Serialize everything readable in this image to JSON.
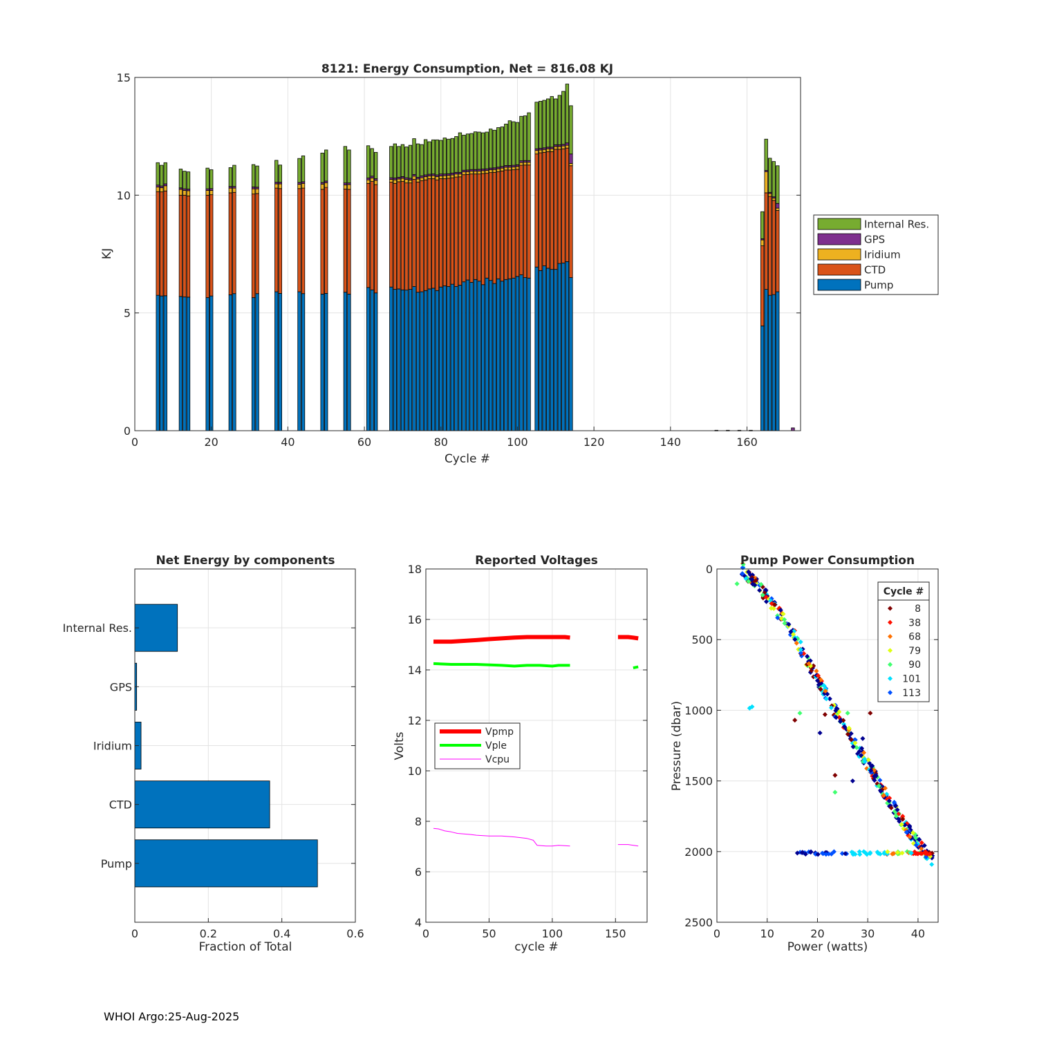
{
  "footer": "WHOI Argo:25-Aug-2025",
  "chart_data": [
    {
      "id": "energy",
      "type": "bar",
      "stacked": true,
      "title": "8121: Energy Consumption,  Net = 816.08 KJ",
      "xlabel": "Cycle #",
      "ylabel": "KJ",
      "xlim": [
        0,
        174
      ],
      "ylim": [
        0,
        15
      ],
      "xticks": [
        0,
        20,
        40,
        60,
        80,
        100,
        120,
        140,
        160
      ],
      "yticks": [
        0,
        5,
        10,
        15
      ],
      "grid": true,
      "legend_position": "outside-right",
      "legend_order": [
        "Internal Res.",
        "GPS",
        "Iridium",
        "CTD",
        "Pump"
      ],
      "colors": {
        "Pump": "#0072BD",
        "CTD": "#D95319",
        "Iridium": "#EDB120",
        "GPS": "#7E2F8E",
        "Internal Res.": "#77AC30"
      },
      "cycles": [
        6,
        7,
        8,
        12,
        13,
        14,
        19,
        20,
        25,
        26,
        31,
        32,
        37,
        38,
        43,
        44,
        49,
        50,
        55,
        56,
        61,
        62,
        63,
        67,
        68,
        69,
        70,
        71,
        72,
        73,
        74,
        75,
        76,
        77,
        78,
        79,
        80,
        81,
        82,
        83,
        84,
        85,
        86,
        87,
        88,
        89,
        90,
        91,
        92,
        93,
        94,
        95,
        96,
        97,
        98,
        99,
        100,
        101,
        102,
        103,
        105,
        106,
        107,
        108,
        109,
        110,
        111,
        112,
        113,
        114,
        164,
        165,
        166,
        167,
        168
      ],
      "series": [
        {
          "name": "Pump",
          "values": [
            5.75,
            5.72,
            5.73,
            5.7,
            5.68,
            5.67,
            5.65,
            5.72,
            5.77,
            5.82,
            5.65,
            5.82,
            5.9,
            5.83,
            5.9,
            5.82,
            5.8,
            5.83,
            5.88,
            5.8,
            6.08,
            5.98,
            5.85,
            6.1,
            6.0,
            6.02,
            5.98,
            5.97,
            6.0,
            6.12,
            5.88,
            5.9,
            5.95,
            6.02,
            6.05,
            5.95,
            6.1,
            6.15,
            6.12,
            6.22,
            6.12,
            6.18,
            6.32,
            6.4,
            6.3,
            6.42,
            6.35,
            6.2,
            6.48,
            6.38,
            6.25,
            6.45,
            6.35,
            6.42,
            6.45,
            6.48,
            6.55,
            6.62,
            6.5,
            6.48,
            6.95,
            6.8,
            7.0,
            6.9,
            6.85,
            6.85,
            7.1,
            7.12,
            7.18,
            6.5,
            4.45,
            6.0,
            5.75,
            5.78,
            5.9
          ]
        },
        {
          "name": "CTD",
          "values": [
            4.4,
            4.42,
            4.45,
            4.3,
            4.32,
            4.3,
            4.35,
            4.3,
            4.33,
            4.3,
            4.4,
            4.25,
            4.4,
            4.45,
            4.38,
            4.48,
            4.45,
            4.5,
            4.38,
            4.45,
            4.42,
            4.6,
            4.6,
            4.45,
            4.5,
            4.55,
            4.6,
            4.55,
            4.52,
            4.55,
            4.68,
            4.72,
            4.7,
            4.68,
            4.65,
            4.7,
            4.6,
            4.55,
            4.6,
            4.52,
            4.65,
            4.6,
            4.55,
            4.48,
            4.6,
            4.48,
            4.55,
            4.72,
            4.45,
            4.58,
            4.72,
            4.55,
            4.68,
            4.65,
            4.62,
            4.6,
            4.55,
            4.65,
            4.78,
            4.8,
            4.8,
            5.0,
            4.82,
            4.95,
            5.0,
            5.1,
            4.85,
            4.85,
            4.82,
            4.75,
            3.4,
            4.1,
            4.2,
            4.0,
            3.45
          ]
        },
        {
          "name": "Iridium",
          "values": [
            0.2,
            0.18,
            0.22,
            0.25,
            0.2,
            0.22,
            0.2,
            0.18,
            0.2,
            0.18,
            0.22,
            0.2,
            0.18,
            0.2,
            0.18,
            0.2,
            0.22,
            0.2,
            0.18,
            0.2,
            0.15,
            0.15,
            0.18,
            0.12,
            0.15,
            0.12,
            0.14,
            0.15,
            0.12,
            0.14,
            0.13,
            0.12,
            0.14,
            0.12,
            0.13,
            0.14,
            0.12,
            0.13,
            0.12,
            0.12,
            0.13,
            0.12,
            0.12,
            0.12,
            0.12,
            0.12,
            0.12,
            0.12,
            0.12,
            0.12,
            0.12,
            0.12,
            0.12,
            0.12,
            0.12,
            0.12,
            0.12,
            0.12,
            0.12,
            0.12,
            0.15,
            0.12,
            0.12,
            0.12,
            0.12,
            0.12,
            0.12,
            0.12,
            0.12,
            0.1,
            0.25,
            0.9,
            0.12,
            0.1,
            0.1
          ]
        },
        {
          "name": "GPS",
          "values": [
            0.08,
            0.07,
            0.08,
            0.06,
            0.07,
            0.07,
            0.07,
            0.08,
            0.07,
            0.07,
            0.08,
            0.07,
            0.07,
            0.07,
            0.08,
            0.07,
            0.07,
            0.07,
            0.08,
            0.07,
            0.08,
            0.08,
            0.07,
            0.07,
            0.08,
            0.07,
            0.07,
            0.07,
            0.08,
            0.07,
            0.07,
            0.08,
            0.07,
            0.07,
            0.07,
            0.07,
            0.08,
            0.07,
            0.07,
            0.08,
            0.07,
            0.07,
            0.07,
            0.07,
            0.07,
            0.07,
            0.08,
            0.07,
            0.07,
            0.07,
            0.07,
            0.07,
            0.07,
            0.07,
            0.07,
            0.07,
            0.07,
            0.07,
            0.07,
            0.07,
            0.07,
            0.07,
            0.07,
            0.07,
            0.07,
            0.07,
            0.07,
            0.07,
            0.1,
            0.4,
            0.05,
            0.05,
            0.05,
            0.05,
            0.2
          ]
        },
        {
          "name": "Internal Res.",
          "values": [
            0.95,
            0.88,
            0.9,
            0.8,
            0.75,
            0.73,
            0.88,
            0.8,
            0.8,
            0.9,
            0.95,
            0.9,
            0.93,
            0.73,
            1.02,
            1.1,
            1.25,
            1.32,
            1.55,
            1.4,
            1.37,
            1.17,
            1.12,
            1.33,
            1.45,
            1.31,
            1.36,
            1.31,
            1.4,
            1.52,
            1.42,
            1.33,
            1.5,
            1.38,
            1.45,
            1.49,
            1.43,
            1.53,
            1.47,
            1.47,
            1.52,
            1.68,
            1.49,
            1.53,
            1.53,
            1.6,
            1.58,
            1.54,
            1.56,
            1.66,
            1.6,
            1.68,
            1.68,
            1.76,
            1.9,
            1.85,
            1.8,
            1.89,
            1.9,
            2.03,
            1.98,
            2.0,
            2.02,
            2.05,
            2.15,
            1.95,
            2.1,
            2.25,
            2.5,
            2.05,
            1.15,
            1.33,
            1.45,
            1.5,
            1.6
          ]
        }
      ],
      "sparse_bars": [
        {
          "cycle": 152,
          "value": 0.02
        },
        {
          "cycle": 155,
          "value": 0.02
        },
        {
          "cycle": 158,
          "value": 0.02
        },
        {
          "cycle": 161,
          "value": 0.02
        },
        {
          "cycle": 172,
          "value": 0.12
        }
      ]
    },
    {
      "id": "components",
      "type": "bar",
      "orientation": "horizontal",
      "title": "Net Energy by components",
      "xlabel": "Fraction of Total",
      "xlim": [
        0,
        0.6
      ],
      "xticks": [
        0,
        0.2,
        0.4,
        0.6
      ],
      "xticklabels": [
        "0",
        "0.2",
        "0.4",
        "0.6"
      ],
      "categories": [
        "Internal Res.",
        "GPS",
        "Iridium",
        "CTD",
        "Pump"
      ],
      "values": [
        0.116,
        0.005,
        0.017,
        0.367,
        0.497
      ],
      "color": "#0072BD"
    },
    {
      "id": "voltages",
      "type": "line",
      "title": "Reported Voltages",
      "xlabel": "cycle #",
      "ylabel": "Volts",
      "xlim": [
        0,
        175
      ],
      "ylim": [
        4,
        18
      ],
      "xticks": [
        0,
        50,
        100,
        150
      ],
      "yticks": [
        4,
        6,
        8,
        10,
        12,
        14,
        16,
        18
      ],
      "legend_position": "middle-left",
      "series": [
        {
          "name": "Vpmp",
          "color": "#FF0000",
          "segments": [
            [
              [
                6,
                15.12
              ],
              [
                20,
                15.12
              ],
              [
                30,
                15.15
              ],
              [
                40,
                15.18
              ],
              [
                50,
                15.22
              ],
              [
                60,
                15.25
              ],
              [
                70,
                15.28
              ],
              [
                80,
                15.3
              ],
              [
                90,
                15.3
              ],
              [
                100,
                15.3
              ],
              [
                110,
                15.3
              ],
              [
                114,
                15.28
              ]
            ],
            [
              [
                152,
                15.3
              ],
              [
                160,
                15.3
              ],
              [
                164,
                15.28
              ],
              [
                168,
                15.25
              ]
            ]
          ]
        },
        {
          "name": "Vple",
          "color": "#00FF00",
          "segments": [
            [
              [
                6,
                14.25
              ],
              [
                20,
                14.22
              ],
              [
                40,
                14.22
              ],
              [
                60,
                14.18
              ],
              [
                70,
                14.15
              ],
              [
                80,
                14.18
              ],
              [
                90,
                14.18
              ],
              [
                100,
                14.15
              ],
              [
                105,
                14.18
              ],
              [
                114,
                14.18
              ]
            ],
            [
              [
                164,
                14.08
              ],
              [
                168,
                14.12
              ]
            ]
          ]
        },
        {
          "name": "Vcpu",
          "color": "#FF00FF",
          "segments": [
            [
              [
                6,
                7.72
              ],
              [
                10,
                7.7
              ],
              [
                15,
                7.62
              ],
              [
                20,
                7.58
              ],
              [
                25,
                7.52
              ],
              [
                35,
                7.48
              ],
              [
                40,
                7.45
              ],
              [
                50,
                7.42
              ],
              [
                60,
                7.42
              ],
              [
                70,
                7.38
              ],
              [
                80,
                7.32
              ],
              [
                85,
                7.25
              ],
              [
                88,
                7.05
              ],
              [
                95,
                7.02
              ],
              [
                100,
                7.02
              ],
              [
                105,
                7.05
              ],
              [
                114,
                7.02
              ]
            ],
            [
              [
                152,
                7.08
              ],
              [
                160,
                7.08
              ],
              [
                168,
                7.02
              ]
            ]
          ]
        }
      ]
    },
    {
      "id": "pump_power",
      "type": "scatter",
      "title": "Pump Power Consumption",
      "xlabel": "Power (watts)",
      "ylabel": "Pressure (dbar)",
      "xlim": [
        0,
        44
      ],
      "ylim": [
        0,
        2500
      ],
      "y_reversed": true,
      "xticks": [
        0,
        10,
        20,
        30,
        40
      ],
      "yticks": [
        0,
        500,
        1000,
        1500,
        2000,
        2500
      ],
      "legend_title": "Cycle #",
      "legend_position": "top-right",
      "legend": [
        {
          "label": "8",
          "color": "#800000"
        },
        {
          "label": "38",
          "color": "#FF1000"
        },
        {
          "label": "68",
          "color": "#FF7000"
        },
        {
          "label": "79",
          "color": "#DFFF10"
        },
        {
          "label": "90",
          "color": "#40FF70"
        },
        {
          "label": "101",
          "color": "#00E0FF"
        },
        {
          "label": "113",
          "color": "#0050FF"
        }
      ],
      "trend": [
        [
          5,
          0
        ],
        [
          10,
          200
        ],
        [
          15,
          450
        ],
        [
          20,
          780
        ],
        [
          25,
          1100
        ],
        [
          30,
          1380
        ],
        [
          35,
          1680
        ],
        [
          40,
          1950
        ],
        [
          43,
          2060
        ]
      ],
      "bottom_row": [
        [
          16,
          2010
        ],
        [
          43,
          2010
        ]
      ],
      "outliers": [
        [
          7,
          975
        ],
        [
          6.5,
          985
        ],
        [
          15.5,
          1070
        ],
        [
          16.5,
          1020
        ],
        [
          20.5,
          1160
        ],
        [
          23.5,
          1460
        ],
        [
          23.5,
          1580
        ],
        [
          27,
          1500
        ],
        [
          30.5,
          1020
        ],
        [
          26,
          1020
        ],
        [
          29,
          1200
        ],
        [
          21.5,
          1030
        ],
        [
          4,
          105
        ]
      ]
    }
  ]
}
